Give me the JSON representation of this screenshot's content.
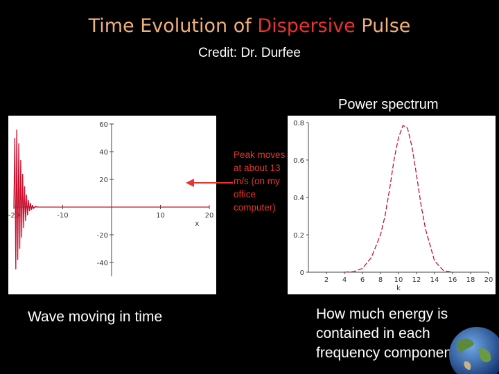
{
  "title": {
    "part1": "Time Evolution of ",
    "highlight": "Dispersive",
    "part2": " Pulse"
  },
  "credit": "Credit: Dr. Durfee",
  "power_spectrum_label": "Power spectrum",
  "annotation": "Peak moves at about 13 m/s (on my office computer)",
  "caption_left": "Wave moving in time",
  "caption_right": "How much energy is contained in each frequency component",
  "colors": {
    "title": "#f0b07a",
    "highlight": "#e8342c",
    "curve": "#c8102e"
  },
  "chart_data": [
    {
      "type": "line",
      "title": "",
      "xlabel": "x",
      "ylabel": "",
      "xlim": [
        -20,
        20
      ],
      "ylim": [
        -50,
        60
      ],
      "xticks": [
        -20,
        -10,
        10,
        20
      ],
      "yticks": [
        60,
        40,
        20,
        -20,
        -40
      ],
      "grid": false,
      "series": [
        {
          "x": [
            -20,
            -19.8,
            -19.6,
            -19.4,
            -19.2,
            -19.0,
            -18.8,
            -18.6,
            -18.4,
            -18.2,
            -18.0,
            -17.8,
            -17.6,
            -17.4,
            -17.2,
            -17.0,
            -16.8,
            -16.6,
            -16.4,
            -16.2,
            -16.0,
            -15.6,
            -15.0,
            -14.0,
            20
          ],
          "y": [
            0,
            50,
            -45,
            56,
            -38,
            46,
            -30,
            34,
            -22,
            24,
            -15,
            15,
            -10,
            9,
            -6,
            5,
            -3,
            3,
            -2,
            1.5,
            -1,
            0.5,
            0,
            0,
            0
          ]
        }
      ]
    },
    {
      "type": "line",
      "title": "",
      "xlabel": "k",
      "ylabel": "",
      "xlim": [
        0,
        20
      ],
      "ylim": [
        0,
        0.8
      ],
      "xticks": [
        2,
        4,
        6,
        8,
        10,
        12,
        14,
        16,
        18,
        20
      ],
      "yticks": [
        0,
        0.2,
        0.4,
        0.6,
        0.8
      ],
      "grid": false,
      "series": [
        {
          "x": [
            4,
            5,
            6,
            7,
            8,
            8.5,
            9,
            9.5,
            10,
            10.5,
            11,
            11.5,
            12,
            12.5,
            13,
            14,
            15,
            16
          ],
          "y": [
            0,
            0.003,
            0.02,
            0.08,
            0.2,
            0.3,
            0.44,
            0.6,
            0.72,
            0.785,
            0.77,
            0.67,
            0.52,
            0.36,
            0.23,
            0.06,
            0.008,
            0
          ]
        }
      ]
    }
  ]
}
